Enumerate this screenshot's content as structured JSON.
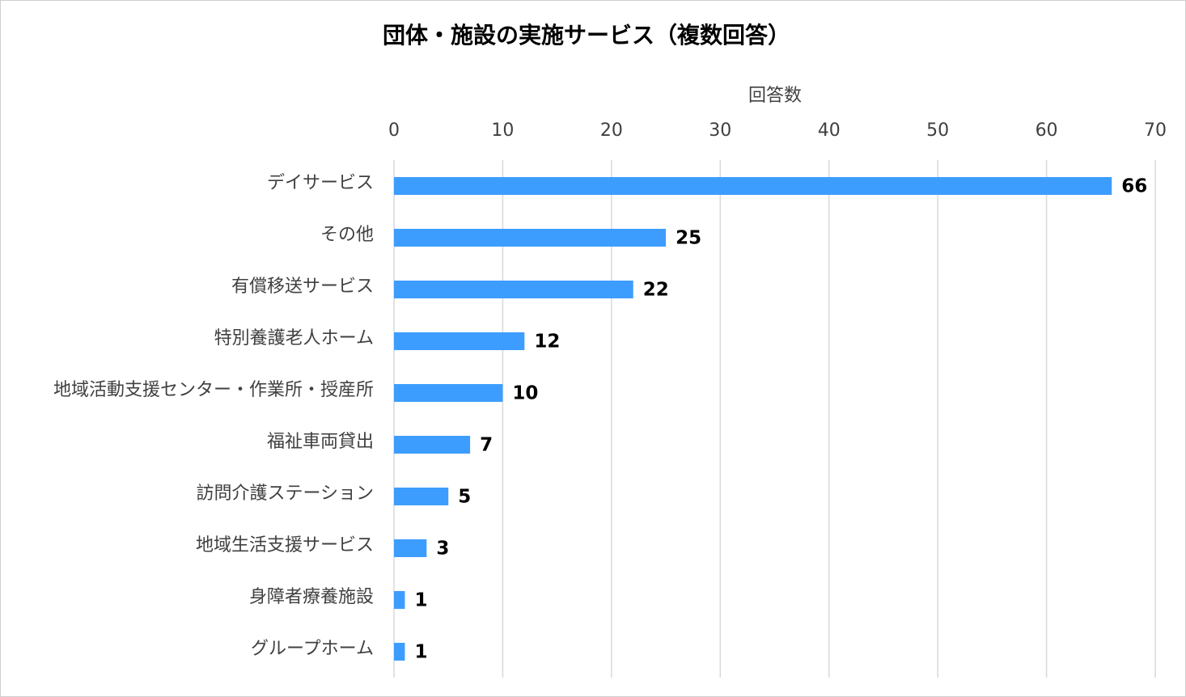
{
  "chart_data": {
    "type": "hbar",
    "title": "団体・施設の実施サービス（複数回答）",
    "x_label": "回答数",
    "categories": [
      "デイサービス",
      "その他",
      "有償移送サービス",
      "特別養護老人ホーム",
      "地域活動支援センター・作業所・授産所",
      "福祉車両貸出",
      "訪問介護ステーション",
      "地域生活支援サービス",
      "身障者療養施設",
      "グループホーム"
    ],
    "values": [
      66,
      25,
      22,
      12,
      10,
      7,
      5,
      3,
      1,
      1
    ],
    "color": "#3d9dff",
    "xlim": [
      0,
      70
    ],
    "xticks": [
      0,
      10,
      20,
      30,
      40,
      50,
      60,
      70
    ],
    "grid": true
  }
}
